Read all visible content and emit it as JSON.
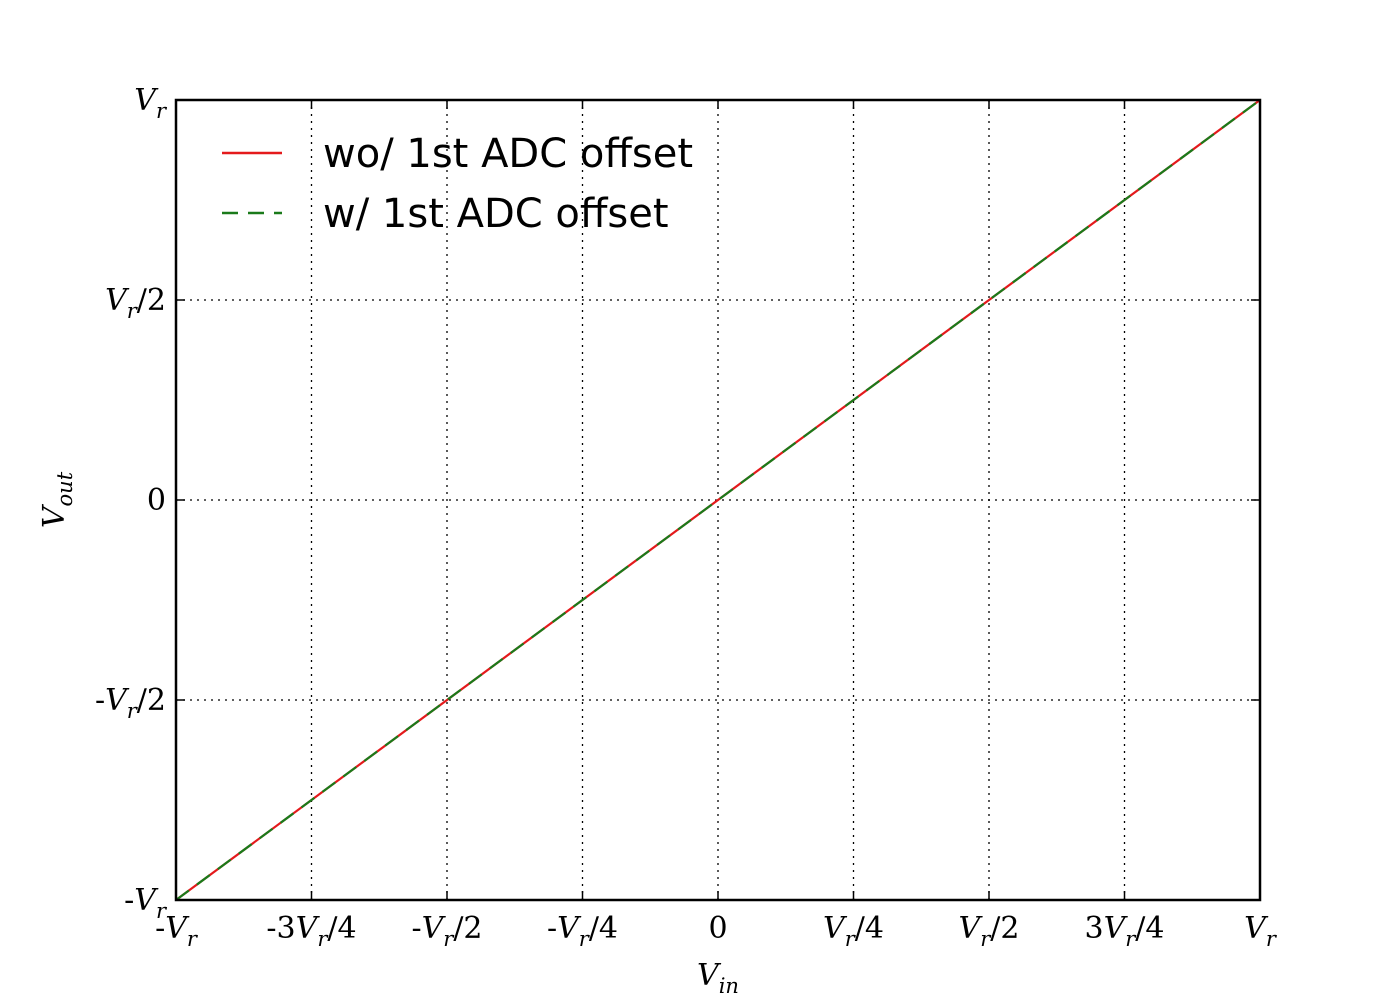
{
  "chart_data": {
    "type": "line",
    "title": "",
    "xlabel": {
      "base": "V",
      "sub": "in"
    },
    "ylabel": {
      "base": "V",
      "sub": "out"
    },
    "xlim": [
      -1,
      1
    ],
    "ylim": [
      -1,
      1
    ],
    "grid": true,
    "legend_position": "top-left",
    "x_ticks": [
      {
        "value": -1,
        "pre": "-",
        "base": "V",
        "sub": "r",
        "post": ""
      },
      {
        "value": -0.75,
        "pre": "-3",
        "base": "V",
        "sub": "r",
        "post": "/4"
      },
      {
        "value": -0.5,
        "pre": "-",
        "base": "V",
        "sub": "r",
        "post": "/2"
      },
      {
        "value": -0.25,
        "pre": "-",
        "base": "V",
        "sub": "r",
        "post": "/4"
      },
      {
        "value": 0,
        "pre": "0",
        "base": "",
        "sub": "",
        "post": ""
      },
      {
        "value": 0.25,
        "pre": "",
        "base": "V",
        "sub": "r",
        "post": "/4"
      },
      {
        "value": 0.5,
        "pre": "",
        "base": "V",
        "sub": "r",
        "post": "/2"
      },
      {
        "value": 0.75,
        "pre": "3",
        "base": "V",
        "sub": "r",
        "post": "/4"
      },
      {
        "value": 1,
        "pre": "",
        "base": "V",
        "sub": "r",
        "post": ""
      }
    ],
    "y_ticks": [
      {
        "value": -1,
        "pre": "-",
        "base": "V",
        "sub": "r",
        "post": ""
      },
      {
        "value": -0.5,
        "pre": "-",
        "base": "V",
        "sub": "r",
        "post": "/2"
      },
      {
        "value": 0,
        "pre": "0",
        "base": "",
        "sub": "",
        "post": ""
      },
      {
        "value": 0.5,
        "pre": "",
        "base": "V",
        "sub": "r",
        "post": "/2"
      },
      {
        "value": 1,
        "pre": "",
        "base": "V",
        "sub": "r",
        "post": ""
      }
    ],
    "series": [
      {
        "name": "wo/ 1st ADC offset",
        "color": "#e41a1c",
        "style": "solid",
        "x": [
          -1,
          1
        ],
        "y": [
          -1,
          1
        ]
      },
      {
        "name": "w/ 1st ADC offset",
        "color": "#1a7a1a",
        "style": "dashed",
        "x": [
          -1,
          1
        ],
        "y": [
          -1,
          1
        ]
      }
    ]
  }
}
